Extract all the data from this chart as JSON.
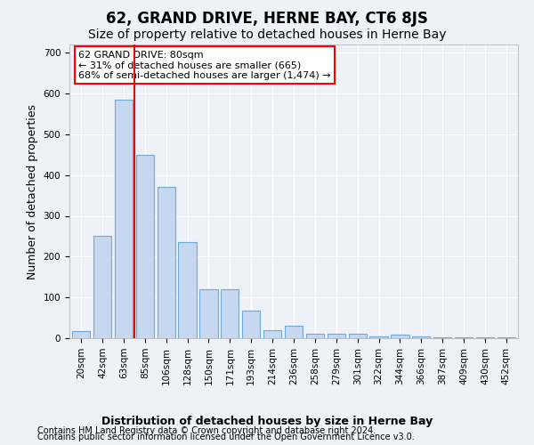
{
  "title": "62, GRAND DRIVE, HERNE BAY, CT6 8JS",
  "subtitle": "Size of property relative to detached houses in Herne Bay",
  "xlabel": "Distribution of detached houses by size in Herne Bay",
  "ylabel": "Number of detached properties",
  "bar_labels": [
    "20sqm",
    "42sqm",
    "63sqm",
    "85sqm",
    "106sqm",
    "128sqm",
    "150sqm",
    "171sqm",
    "193sqm",
    "214sqm",
    "236sqm",
    "258sqm",
    "279sqm",
    "301sqm",
    "322sqm",
    "344sqm",
    "366sqm",
    "387sqm",
    "409sqm",
    "430sqm",
    "452sqm"
  ],
  "bar_values": [
    18,
    250,
    585,
    450,
    370,
    235,
    120,
    120,
    68,
    20,
    30,
    12,
    11,
    10,
    5,
    9,
    5,
    2,
    2,
    2,
    2
  ],
  "bar_color": "#c5d8f0",
  "bar_edge_color": "#6fa8d4",
  "red_line_index": 3,
  "annotation_line1": "62 GRAND DRIVE: 80sqm",
  "annotation_line2": "← 31% of detached houses are smaller (665)",
  "annotation_line3": "68% of semi-detached houses are larger (1,474) →",
  "annotation_box_color": "white",
  "annotation_box_edge_color": "red",
  "ylim": [
    0,
    720
  ],
  "yticks": [
    0,
    100,
    200,
    300,
    400,
    500,
    600,
    700
  ],
  "footer_line1": "Contains HM Land Registry data © Crown copyright and database right 2024.",
  "footer_line2": "Contains public sector information licensed under the Open Government Licence v3.0.",
  "background_color": "#eef2f8",
  "grid_color": "white",
  "title_fontsize": 12,
  "subtitle_fontsize": 10,
  "axis_label_fontsize": 9,
  "tick_fontsize": 7.5,
  "footer_fontsize": 7
}
